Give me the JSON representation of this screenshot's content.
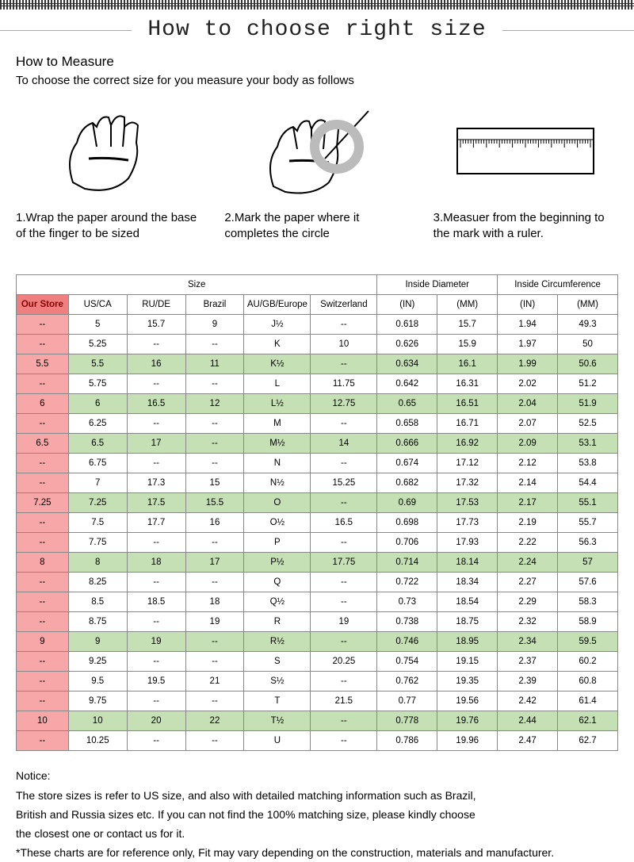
{
  "title": "How to choose right size",
  "measure": {
    "heading": "How to Measure",
    "subheading": "To choose the correct size for you measure your body as follows",
    "steps": [
      "1.Wrap the paper around the base of the finger to be sized",
      "2.Mark the paper where it completes the circle",
      "3.Measuer from the beginning to the mark with a ruler."
    ]
  },
  "table": {
    "group_headers": [
      "Size",
      "Inside Diameter",
      "Inside Circumference"
    ],
    "group_spans": [
      6,
      2,
      2
    ],
    "columns": [
      "Our Store",
      "US/CA",
      "RU/DE",
      "Brazil",
      "AU/GB/Europe",
      "Switzerland",
      "(IN)",
      "(MM)",
      "(IN)",
      "(MM)"
    ],
    "col_widths": [
      "60",
      "68",
      "68",
      "68",
      "78",
      "78",
      "70",
      "70",
      "70",
      "70"
    ],
    "highlight_color": "#c5e0b4",
    "store_col_color": "#f7a7a7",
    "store_hdr_color": "#f08080",
    "border_color": "#888888",
    "font_size": 11.5,
    "rows": [
      {
        "hl": false,
        "cells": [
          "--",
          "5",
          "15.7",
          "9",
          "J½",
          "--",
          "0.618",
          "15.7",
          "1.94",
          "49.3"
        ]
      },
      {
        "hl": false,
        "cells": [
          "--",
          "5.25",
          "--",
          "--",
          "K",
          "10",
          "0.626",
          "15.9",
          "1.97",
          "50"
        ]
      },
      {
        "hl": true,
        "cells": [
          "5.5",
          "5.5",
          "16",
          "11",
          "K½",
          "--",
          "0.634",
          "16.1",
          "1.99",
          "50.6"
        ]
      },
      {
        "hl": false,
        "cells": [
          "--",
          "5.75",
          "--",
          "--",
          "L",
          "11.75",
          "0.642",
          "16.31",
          "2.02",
          "51.2"
        ]
      },
      {
        "hl": true,
        "cells": [
          "6",
          "6",
          "16.5",
          "12",
          "L½",
          "12.75",
          "0.65",
          "16.51",
          "2.04",
          "51.9"
        ]
      },
      {
        "hl": false,
        "cells": [
          "--",
          "6.25",
          "--",
          "--",
          "M",
          "--",
          "0.658",
          "16.71",
          "2.07",
          "52.5"
        ]
      },
      {
        "hl": true,
        "cells": [
          "6.5",
          "6.5",
          "17",
          "--",
          "M½",
          "14",
          "0.666",
          "16.92",
          "2.09",
          "53.1"
        ]
      },
      {
        "hl": false,
        "cells": [
          "--",
          "6.75",
          "--",
          "--",
          "N",
          "--",
          "0.674",
          "17.12",
          "2.12",
          "53.8"
        ]
      },
      {
        "hl": false,
        "cells": [
          "--",
          "7",
          "17.3",
          "15",
          "N½",
          "15.25",
          "0.682",
          "17.32",
          "2.14",
          "54.4"
        ]
      },
      {
        "hl": true,
        "cells": [
          "7.25",
          "7.25",
          "17.5",
          "15.5",
          "O",
          "--",
          "0.69",
          "17.53",
          "2.17",
          "55.1"
        ]
      },
      {
        "hl": false,
        "cells": [
          "--",
          "7.5",
          "17.7",
          "16",
          "O½",
          "16.5",
          "0.698",
          "17.73",
          "2.19",
          "55.7"
        ]
      },
      {
        "hl": false,
        "cells": [
          "--",
          "7.75",
          "--",
          "--",
          "P",
          "--",
          "0.706",
          "17.93",
          "2.22",
          "56.3"
        ]
      },
      {
        "hl": true,
        "cells": [
          "8",
          "8",
          "18",
          "17",
          "P½",
          "17.75",
          "0.714",
          "18.14",
          "2.24",
          "57"
        ]
      },
      {
        "hl": false,
        "cells": [
          "--",
          "8.25",
          "--",
          "--",
          "Q",
          "--",
          "0.722",
          "18.34",
          "2.27",
          "57.6"
        ]
      },
      {
        "hl": false,
        "cells": [
          "--",
          "8.5",
          "18.5",
          "18",
          "Q½",
          "--",
          "0.73",
          "18.54",
          "2.29",
          "58.3"
        ]
      },
      {
        "hl": false,
        "cells": [
          "--",
          "8.75",
          "--",
          "19",
          "R",
          "19",
          "0.738",
          "18.75",
          "2.32",
          "58.9"
        ]
      },
      {
        "hl": true,
        "cells": [
          "9",
          "9",
          "19",
          "--",
          "R½",
          "--",
          "0.746",
          "18.95",
          "2.34",
          "59.5"
        ]
      },
      {
        "hl": false,
        "cells": [
          "--",
          "9.25",
          "--",
          "--",
          "S",
          "20.25",
          "0.754",
          "19.15",
          "2.37",
          "60.2"
        ]
      },
      {
        "hl": false,
        "cells": [
          "--",
          "9.5",
          "19.5",
          "21",
          "S½",
          "--",
          "0.762",
          "19.35",
          "2.39",
          "60.8"
        ]
      },
      {
        "hl": false,
        "cells": [
          "--",
          "9.75",
          "--",
          "--",
          "T",
          "21.5",
          "0.77",
          "19.56",
          "2.42",
          "61.4"
        ]
      },
      {
        "hl": true,
        "cells": [
          "10",
          "10",
          "20",
          "22",
          "T½",
          "--",
          "0.778",
          "19.76",
          "2.44",
          "62.1"
        ]
      },
      {
        "hl": false,
        "cells": [
          "--",
          "10.25",
          "--",
          "--",
          "U",
          "--",
          "0.786",
          "19.96",
          "2.47",
          "62.7"
        ]
      }
    ]
  },
  "notice": {
    "title": "Notice:",
    "lines": [
      "The store sizes is refer to US size, and also with detailed matching information such as Brazil,",
      "British and Russia sizes etc. If you can not find the 100% matching size, please kindly choose",
      "the closest one or contact us for it.",
      "*These charts are for reference only, Fit may vary depending on the construction, materials and manufacturer."
    ]
  }
}
